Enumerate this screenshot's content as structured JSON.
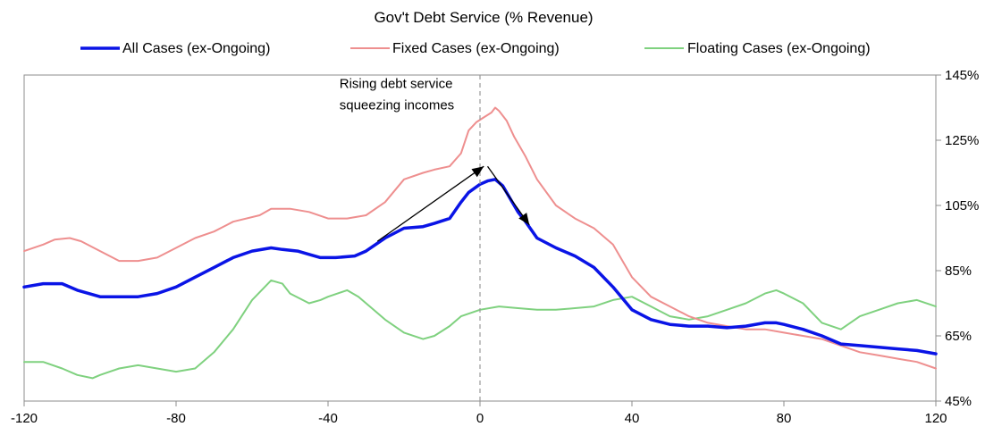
{
  "chart_data": {
    "type": "line",
    "title": "Gov't Debt Service (% Revenue)",
    "xlabel": "",
    "ylabel": "",
    "xlim": [
      -120,
      120
    ],
    "ylim": [
      45,
      145
    ],
    "x_ticks": [
      -120,
      -80,
      -40,
      0,
      40,
      80,
      120
    ],
    "y_ticks": [
      45,
      65,
      85,
      105,
      125,
      145
    ],
    "y_tick_labels": [
      "45%",
      "65%",
      "85%",
      "105%",
      "125%",
      "145%"
    ],
    "y_axis_side": "right",
    "grid": false,
    "legend_position": "top",
    "reference_line_x": 0,
    "annotation": {
      "lines": [
        "Rising debt service",
        "squeezing incomes"
      ],
      "x": -37,
      "y": 141
    },
    "arrows": [
      {
        "from": [
          -27,
          94
        ],
        "to": [
          1,
          117
        ]
      },
      {
        "from": [
          2,
          117
        ],
        "to": [
          13,
          99
        ]
      }
    ],
    "series": [
      {
        "name": "All Cases (ex-Ongoing)",
        "color": "#0a14e6",
        "width": 3.5,
        "x": [
          -120,
          -115,
          -110,
          -106,
          -100,
          -95,
          -90,
          -85,
          -80,
          -75,
          -70,
          -65,
          -60,
          -55,
          -52,
          -48,
          -45,
          -42,
          -38,
          -33,
          -30,
          -25,
          -20,
          -15,
          -12,
          -8,
          -5,
          -3,
          0,
          2,
          4,
          6,
          8,
          10,
          12,
          15,
          20,
          25,
          30,
          35,
          40,
          45,
          50,
          55,
          60,
          65,
          70,
          75,
          78,
          80,
          85,
          90,
          95,
          100,
          105,
          110,
          115,
          120
        ],
        "y": [
          80,
          81,
          81,
          79,
          77,
          77,
          77,
          78,
          80,
          83,
          86,
          89,
          91,
          92,
          91.5,
          91,
          90,
          89,
          89,
          89.5,
          91,
          95,
          98,
          98.5,
          99.5,
          101,
          106,
          109,
          111.5,
          112.5,
          113,
          111,
          107,
          103,
          100,
          95,
          92,
          89.5,
          86,
          80,
          73,
          70,
          68.5,
          68,
          68,
          67.5,
          68,
          69,
          69,
          68.5,
          67,
          65,
          62.5,
          62,
          61.5,
          61,
          60.5,
          59.5
        ]
      },
      {
        "name": "Fixed Cases (ex-Ongoing)",
        "color": "#ee8f8f",
        "width": 2,
        "x": [
          -120,
          -115,
          -112,
          -108,
          -105,
          -100,
          -95,
          -90,
          -85,
          -80,
          -75,
          -70,
          -65,
          -58,
          -55,
          -52,
          -50,
          -45,
          -40,
          -35,
          -30,
          -25,
          -20,
          -15,
          -12,
          -8,
          -5,
          -3,
          -1,
          1,
          3,
          4,
          5,
          7,
          9,
          12,
          15,
          20,
          25,
          30,
          35,
          40,
          45,
          50,
          55,
          60,
          65,
          70,
          75,
          80,
          85,
          90,
          95,
          100,
          105,
          110,
          115,
          120
        ],
        "y": [
          91,
          93,
          94.5,
          95,
          94,
          91,
          88,
          88,
          89,
          92,
          95,
          97,
          100,
          102,
          104,
          104,
          104,
          103,
          101,
          101,
          102,
          106,
          113,
          115,
          116,
          117,
          121,
          128,
          130.5,
          132,
          133.5,
          135,
          134,
          131,
          126,
          120,
          113,
          105,
          101,
          98,
          93,
          83,
          77,
          74,
          71,
          69,
          68,
          67,
          67,
          66,
          65,
          64,
          62,
          60,
          59,
          58,
          57,
          55
        ]
      },
      {
        "name": "Floating Cases (ex-Ongoing)",
        "color": "#7fd17f",
        "width": 2,
        "x": [
          -120,
          -115,
          -110,
          -106,
          -102,
          -100,
          -95,
          -90,
          -85,
          -80,
          -75,
          -70,
          -65,
          -60,
          -55,
          -52,
          -50,
          -45,
          -42,
          -40,
          -35,
          -32,
          -28,
          -25,
          -20,
          -15,
          -12,
          -8,
          -5,
          0,
          5,
          10,
          15,
          20,
          25,
          30,
          35,
          40,
          45,
          50,
          55,
          60,
          65,
          70,
          75,
          78,
          80,
          85,
          90,
          95,
          100,
          105,
          110,
          115,
          120
        ],
        "y": [
          57,
          57,
          55,
          53,
          52,
          53,
          55,
          56,
          55,
          54,
          55,
          60,
          67,
          76,
          82,
          81,
          78,
          75,
          76,
          77,
          79,
          77,
          73,
          70,
          66,
          64,
          65,
          68,
          71,
          73,
          74,
          73.5,
          73,
          73,
          73.5,
          74,
          76,
          77,
          74,
          71,
          70,
          71,
          73,
          75,
          78,
          79,
          78,
          75,
          69,
          67,
          71,
          73,
          75,
          76,
          74
        ]
      }
    ]
  }
}
